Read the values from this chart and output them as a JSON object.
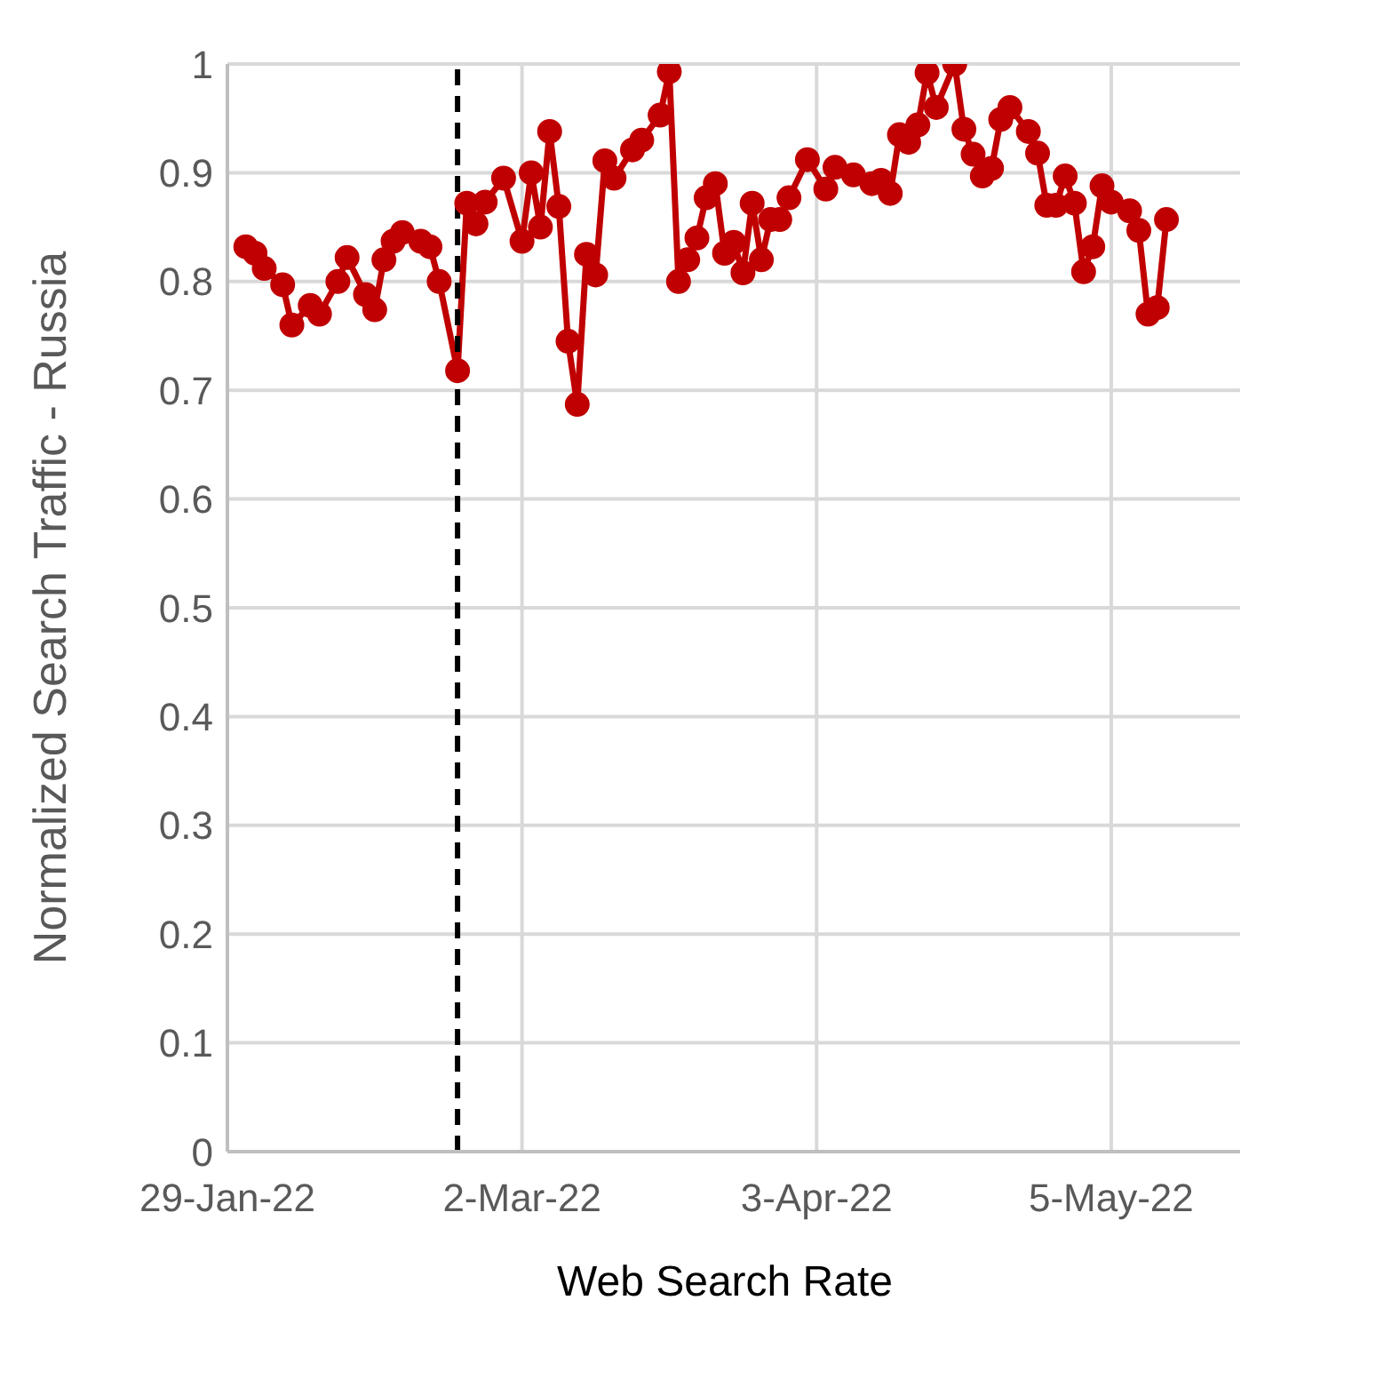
{
  "chart_data": {
    "type": "line",
    "xlabel": "Web Search Rate",
    "ylabel": "Normalized Search Traffic - Russia",
    "xlim": [
      "2022-01-29",
      "2022-05-19"
    ],
    "xticks": [
      {
        "value": "2022-01-29",
        "label": "29-Jan-22"
      },
      {
        "value": "2022-03-02",
        "label": "2-Mar-22"
      },
      {
        "value": "2022-04-03",
        "label": "3-Apr-22"
      },
      {
        "value": "2022-05-05",
        "label": "5-May-22"
      }
    ],
    "ylim": [
      0,
      1
    ],
    "yticks": [
      0,
      0.1,
      0.2,
      0.3,
      0.4,
      0.5,
      0.6,
      0.7,
      0.8,
      0.9,
      1
    ],
    "grid": true,
    "marker": "circle",
    "line_style": "solid",
    "ref_lines": [
      {
        "axis": "x",
        "value": "2022-02-23",
        "color": "#000000",
        "line_style": "dashed"
      }
    ],
    "x": [
      "2022-01-31",
      "2022-02-01",
      "2022-02-02",
      "2022-02-04",
      "2022-02-05",
      "2022-02-07",
      "2022-02-08",
      "2022-02-10",
      "2022-02-11",
      "2022-02-13",
      "2022-02-14",
      "2022-02-15",
      "2022-02-16",
      "2022-02-17",
      "2022-02-19",
      "2022-02-20",
      "2022-02-21",
      "2022-02-23",
      "2022-02-24",
      "2022-02-25",
      "2022-02-26",
      "2022-02-28",
      "2022-03-02",
      "2022-03-03",
      "2022-03-04",
      "2022-03-05",
      "2022-03-06",
      "2022-03-07",
      "2022-03-08",
      "2022-03-09",
      "2022-03-10",
      "2022-03-11",
      "2022-03-12",
      "2022-03-14",
      "2022-03-15",
      "2022-03-17",
      "2022-03-18",
      "2022-03-19",
      "2022-03-20",
      "2022-03-21",
      "2022-03-22",
      "2022-03-23",
      "2022-03-24",
      "2022-03-25",
      "2022-03-26",
      "2022-03-27",
      "2022-03-28",
      "2022-03-29",
      "2022-03-30",
      "2022-03-31",
      "2022-04-02",
      "2022-04-04",
      "2022-04-05",
      "2022-04-07",
      "2022-04-09",
      "2022-04-10",
      "2022-04-11",
      "2022-04-12",
      "2022-04-13",
      "2022-04-14",
      "2022-04-15",
      "2022-04-16",
      "2022-04-18",
      "2022-04-19",
      "2022-04-20",
      "2022-04-21",
      "2022-04-22",
      "2022-04-23",
      "2022-04-24",
      "2022-04-26",
      "2022-04-27",
      "2022-04-28",
      "2022-04-29",
      "2022-04-30",
      "2022-05-01",
      "2022-05-02",
      "2022-05-03",
      "2022-05-04",
      "2022-05-05",
      "2022-05-07",
      "2022-05-08",
      "2022-05-09",
      "2022-05-10",
      "2022-05-11"
    ],
    "series": [
      {
        "color": "#c00000",
        "values": [
          0.832,
          0.826,
          0.812,
          0.797,
          0.76,
          0.778,
          0.77,
          0.8,
          0.822,
          0.788,
          0.774,
          0.82,
          0.837,
          0.845,
          0.837,
          0.832,
          0.8,
          0.718,
          0.872,
          0.853,
          0.873,
          0.895,
          0.837,
          0.9,
          0.85,
          0.938,
          0.869,
          0.745,
          0.687,
          0.825,
          0.806,
          0.911,
          0.895,
          0.921,
          0.93,
          0.953,
          0.993,
          0.8,
          0.82,
          0.84,
          0.877,
          0.89,
          0.826,
          0.836,
          0.808,
          0.872,
          0.82,
          0.857,
          0.857,
          0.877,
          0.912,
          0.885,
          0.905,
          0.898,
          0.89,
          0.893,
          0.881,
          0.935,
          0.928,
          0.944,
          0.992,
          0.96,
          1.0,
          0.94,
          0.917,
          0.897,
          0.904,
          0.949,
          0.96,
          0.938,
          0.918,
          0.87,
          0.87,
          0.897,
          0.872,
          0.809,
          0.832,
          0.888,
          0.873,
          0.865,
          0.847,
          0.77,
          0.776,
          0.857
        ]
      }
    ]
  }
}
